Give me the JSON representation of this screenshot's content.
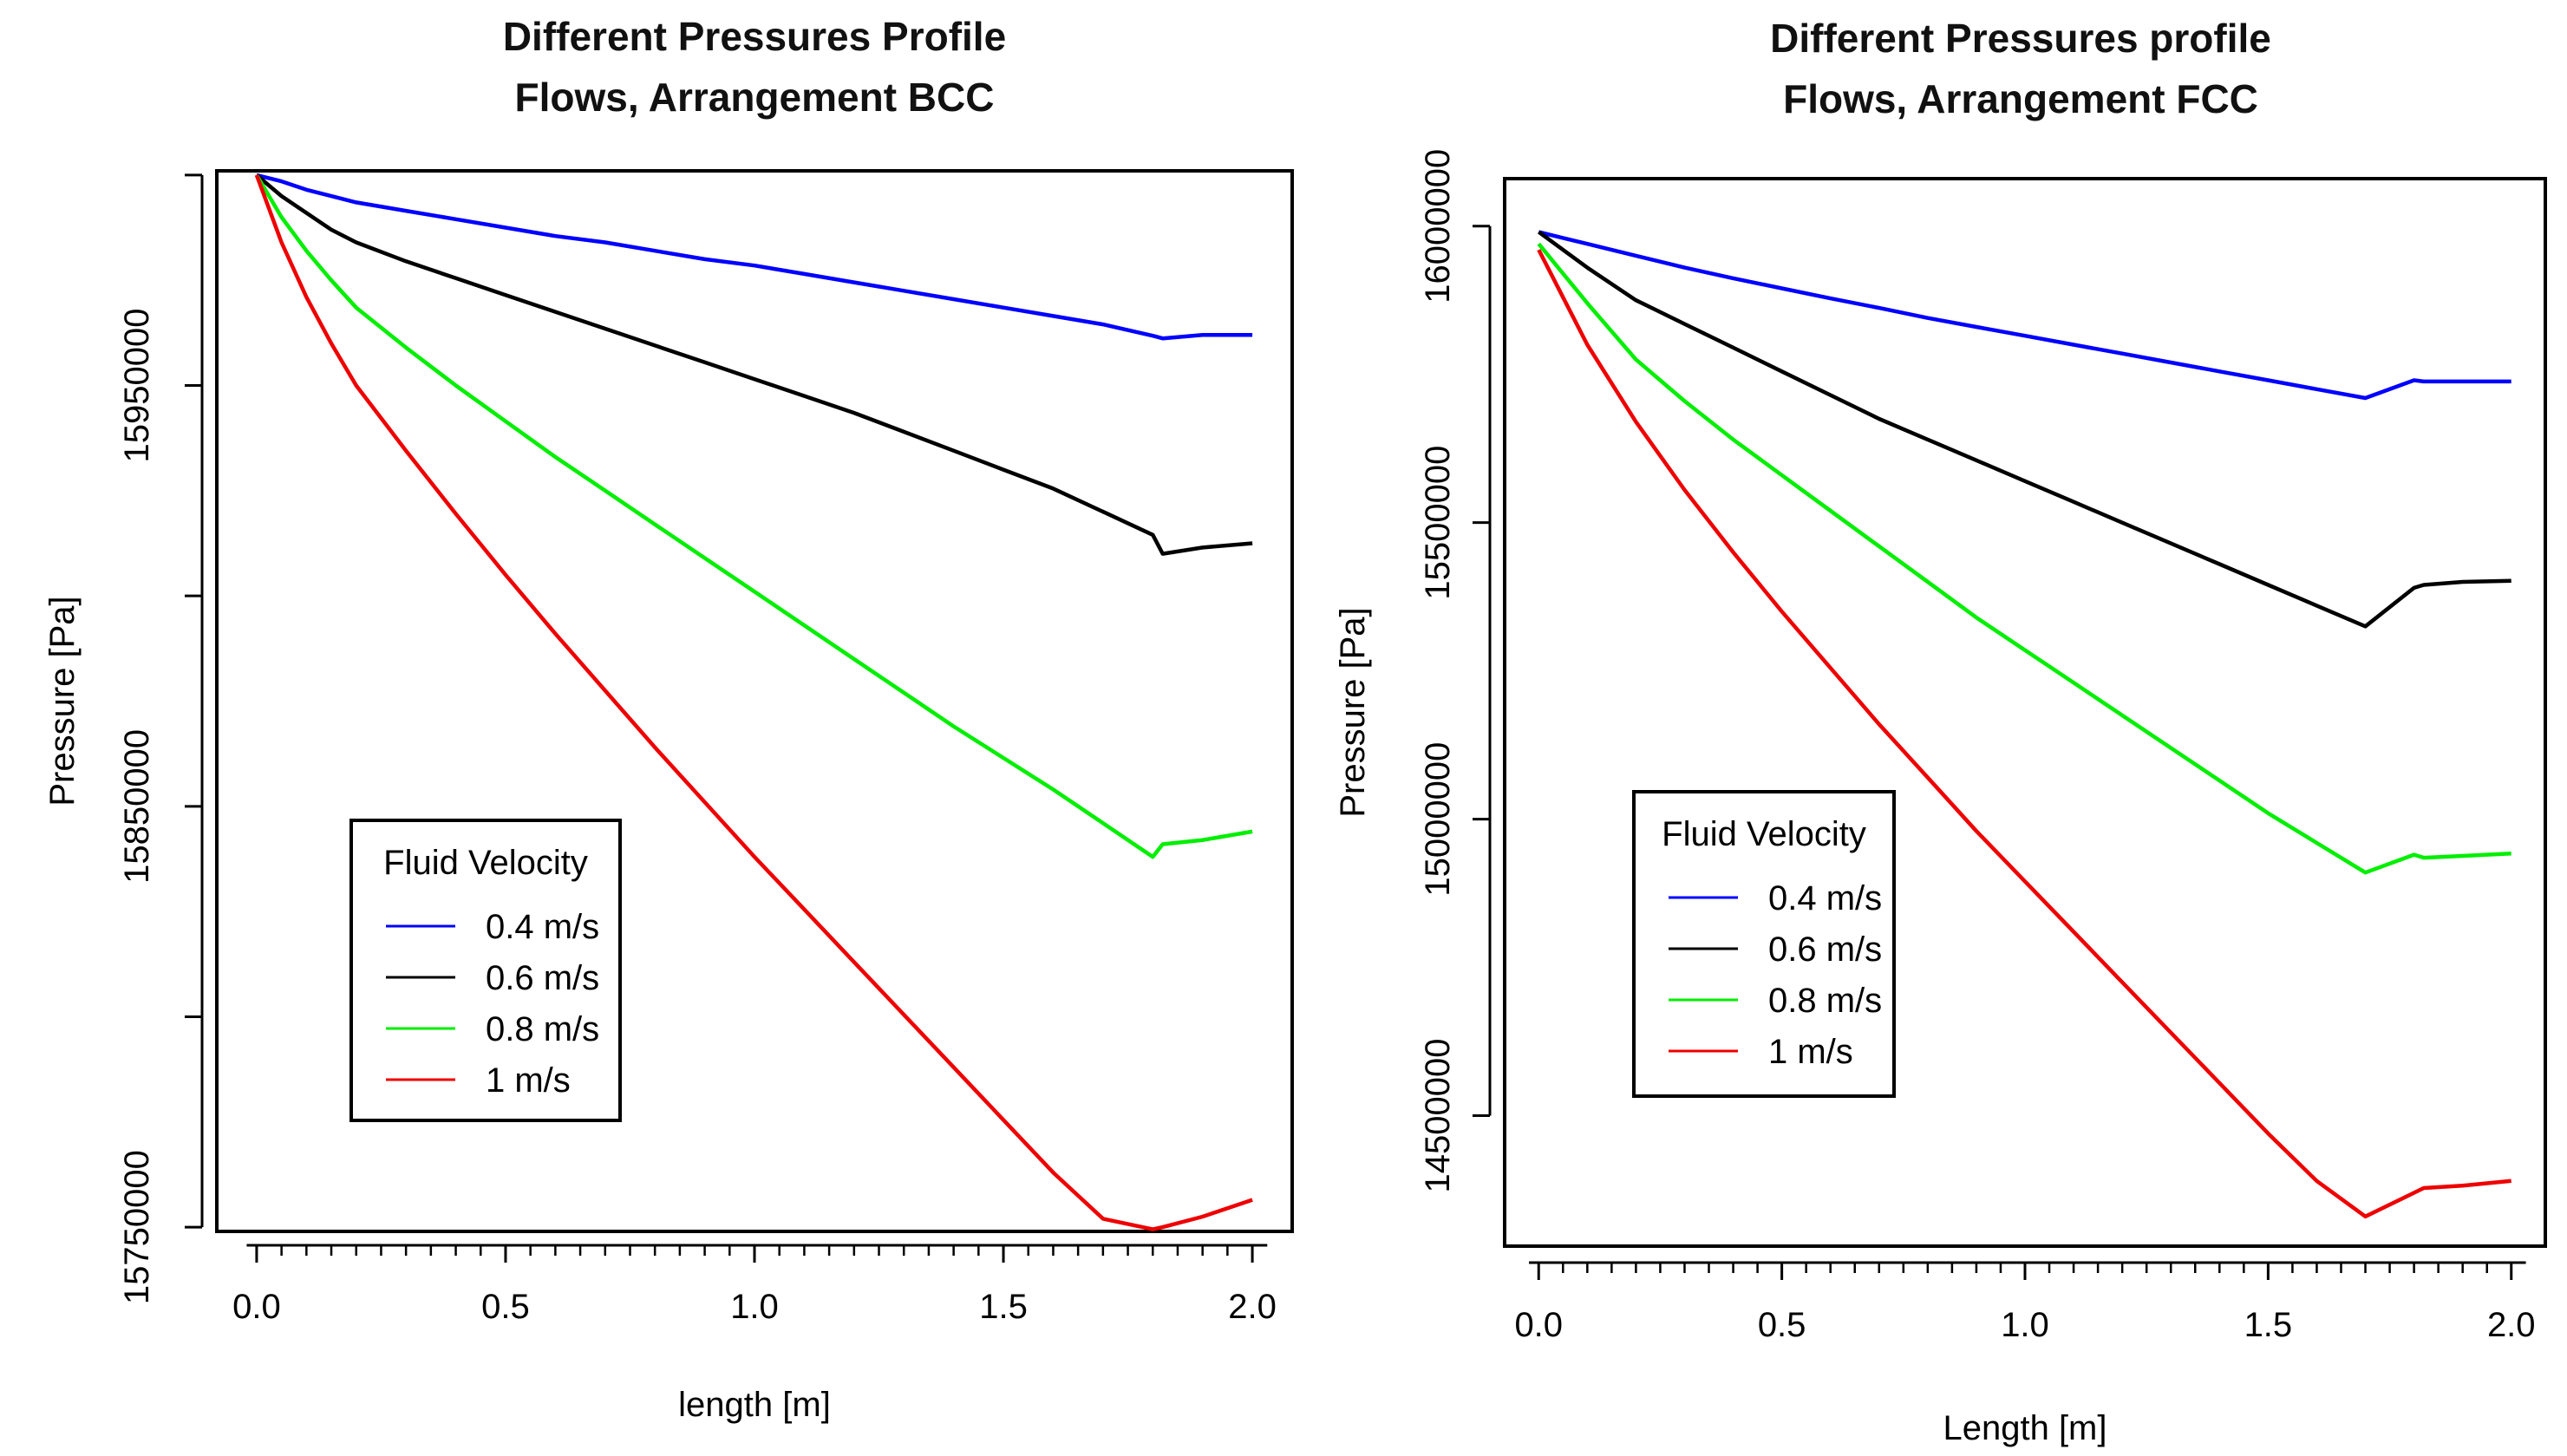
{
  "chart_data": [
    {
      "type": "line",
      "title_line1": "Different Pressures Profile",
      "title_line2": "Flows, Arrangement BCC",
      "xlabel": "length [m]",
      "ylabel": "Pressure [Pa]",
      "xlim": [
        -0.08,
        2.08
      ],
      "ylim": [
        15749000,
        16001000
      ],
      "x_ticks": [
        0.0,
        0.5,
        1.0,
        1.5,
        2.0
      ],
      "x_tick_labels": [
        "0.0",
        "0.5",
        "1.0",
        "1.5",
        "2.0"
      ],
      "y_ticks": [
        15750000,
        15800000,
        15850000,
        15900000,
        15950000,
        16000000
      ],
      "y_tick_labels": [
        "15750000",
        "",
        "15850000",
        "",
        "15950000",
        ""
      ],
      "legend_title": "Fluid Velocity",
      "legend_position": "bottom-left",
      "grid": false,
      "series": [
        {
          "name": "0.4 m/s",
          "color": "#0000ff",
          "x": [
            0.0,
            0.05,
            0.1,
            0.15,
            0.2,
            0.3,
            0.4,
            0.5,
            0.6,
            0.7,
            0.8,
            0.9,
            1.0,
            1.1,
            1.2,
            1.3,
            1.4,
            1.5,
            1.6,
            1.7,
            1.8,
            1.82,
            1.9,
            2.0
          ],
          "y": [
            16000000,
            15998500,
            15996500,
            15995000,
            15993500,
            15991500,
            15989500,
            15987500,
            15985500,
            15984000,
            15982000,
            15980000,
            15978500,
            15976500,
            15974500,
            15972500,
            15970500,
            15968500,
            15966500,
            15964500,
            15961800,
            15961200,
            15962000,
            15962000
          ]
        },
        {
          "name": "0.6 m/s",
          "color": "#000000",
          "x": [
            0.0,
            0.05,
            0.1,
            0.15,
            0.2,
            0.3,
            0.4,
            0.5,
            0.6,
            0.7,
            0.8,
            0.9,
            1.0,
            1.1,
            1.2,
            1.3,
            1.4,
            1.5,
            1.6,
            1.7,
            1.8,
            1.82,
            1.9,
            2.0
          ],
          "y": [
            16000000,
            15995000,
            15991000,
            15987000,
            15984000,
            15979500,
            15975500,
            15971500,
            15967500,
            15963500,
            15959500,
            15955500,
            15951500,
            15947500,
            15943500,
            15939000,
            15934500,
            15930000,
            15925500,
            15920000,
            15914500,
            15910000,
            15911500,
            15912500
          ]
        },
        {
          "name": "0.8 m/s",
          "color": "#00ee00",
          "x": [
            0.0,
            0.05,
            0.1,
            0.15,
            0.2,
            0.3,
            0.4,
            0.5,
            0.6,
            0.7,
            0.8,
            0.9,
            1.0,
            1.1,
            1.2,
            1.3,
            1.4,
            1.5,
            1.6,
            1.7,
            1.8,
            1.82,
            1.9,
            2.0
          ],
          "y": [
            16000000,
            15990000,
            15982000,
            15975000,
            15968500,
            15959000,
            15950000,
            15941500,
            15933000,
            15925000,
            15917000,
            15909000,
            15901000,
            15893000,
            15885000,
            15877000,
            15869000,
            15861500,
            15854000,
            15846000,
            15838000,
            15841000,
            15842000,
            15844000
          ]
        },
        {
          "name": "1 m/s",
          "color": "#ee0000",
          "x": [
            0.0,
            0.05,
            0.1,
            0.15,
            0.2,
            0.3,
            0.4,
            0.5,
            0.6,
            0.7,
            0.8,
            0.9,
            1.0,
            1.1,
            1.2,
            1.3,
            1.4,
            1.5,
            1.6,
            1.7,
            1.8,
            1.82,
            1.9,
            2.0
          ],
          "y": [
            16000000,
            15984000,
            15971000,
            15960000,
            15950000,
            15934500,
            15919500,
            15905000,
            15891000,
            15877500,
            15864000,
            15851000,
            15838000,
            15825500,
            15813000,
            15800500,
            15788000,
            15775500,
            15763000,
            15752000,
            15749500,
            15750000,
            15752500,
            15756500
          ]
        }
      ]
    },
    {
      "type": "line",
      "title_line1": "Different Pressures profile",
      "title_line2": "Flows, Arrangement FCC",
      "xlabel": "Length [m]",
      "ylabel": "Pressure [Pa]",
      "xlim": [
        -0.07,
        2.07
      ],
      "ylim": [
        14280000,
        16080000
      ],
      "x_ticks": [
        0.0,
        0.5,
        1.0,
        1.5,
        2.0
      ],
      "x_tick_labels": [
        "0.0",
        "0.5",
        "1.0",
        "1.5",
        "2.0"
      ],
      "y_ticks": [
        14500000,
        15000000,
        15500000,
        16000000
      ],
      "y_tick_labels": [
        "14500000",
        "15000000",
        "15500000",
        "16000000"
      ],
      "legend_title": "Fluid Velocity",
      "legend_position": "bottom-left",
      "grid": false,
      "series": [
        {
          "name": "0.4 m/s",
          "color": "#0000ff",
          "x": [
            0.0,
            0.05,
            0.1,
            0.2,
            0.3,
            0.4,
            0.5,
            0.6,
            0.7,
            0.8,
            0.9,
            1.0,
            1.1,
            1.2,
            1.3,
            1.4,
            1.5,
            1.6,
            1.7,
            1.8,
            1.82,
            1.9,
            2.0
          ],
          "y": [
            15990000,
            15980000,
            15970000,
            15950000,
            15930000,
            15912000,
            15895000,
            15878000,
            15862000,
            15845000,
            15830000,
            15815000,
            15800000,
            15785000,
            15770000,
            15755000,
            15740000,
            15725000,
            15710000,
            15740000,
            15738000,
            15738000,
            15738000
          ]
        },
        {
          "name": "0.6 m/s",
          "color": "#000000",
          "x": [
            0.0,
            0.05,
            0.1,
            0.2,
            0.3,
            0.4,
            0.5,
            0.6,
            0.7,
            0.8,
            0.9,
            1.0,
            1.1,
            1.2,
            1.3,
            1.4,
            1.5,
            1.6,
            1.7,
            1.8,
            1.82,
            1.9,
            2.0
          ],
          "y": [
            15990000,
            15960000,
            15930000,
            15875000,
            15835000,
            15795000,
            15755000,
            15715000,
            15675000,
            15640000,
            15605000,
            15570000,
            15535000,
            15500000,
            15465000,
            15430000,
            15395000,
            15360000,
            15325000,
            15390000,
            15395000,
            15400000,
            15402000
          ]
        },
        {
          "name": "0.8 m/s",
          "color": "#00ee00",
          "x": [
            0.0,
            0.05,
            0.1,
            0.2,
            0.3,
            0.4,
            0.5,
            0.6,
            0.7,
            0.8,
            0.9,
            1.0,
            1.1,
            1.2,
            1.3,
            1.4,
            1.5,
            1.6,
            1.7,
            1.8,
            1.82,
            1.9,
            2.0
          ],
          "y": [
            15970000,
            15920000,
            15870000,
            15775000,
            15705000,
            15640000,
            15580000,
            15520000,
            15460000,
            15400000,
            15340000,
            15285000,
            15230000,
            15175000,
            15120000,
            15065000,
            15010000,
            14960000,
            14910000,
            14940000,
            14935000,
            14938000,
            14942000
          ]
        },
        {
          "name": "1 m/s",
          "color": "#ee0000",
          "x": [
            0.0,
            0.05,
            0.1,
            0.2,
            0.3,
            0.4,
            0.5,
            0.6,
            0.7,
            0.8,
            0.9,
            1.0,
            1.1,
            1.2,
            1.3,
            1.4,
            1.5,
            1.6,
            1.7,
            1.8,
            1.82,
            1.9,
            2.0
          ],
          "y": [
            15960000,
            15880000,
            15800000,
            15670000,
            15555000,
            15450000,
            15350000,
            15255000,
            15160000,
            15070000,
            14980000,
            14895000,
            14810000,
            14725000,
            14640000,
            14555000,
            14470000,
            14390000,
            14330000,
            14370000,
            14378000,
            14382000,
            14390000
          ]
        }
      ]
    }
  ]
}
